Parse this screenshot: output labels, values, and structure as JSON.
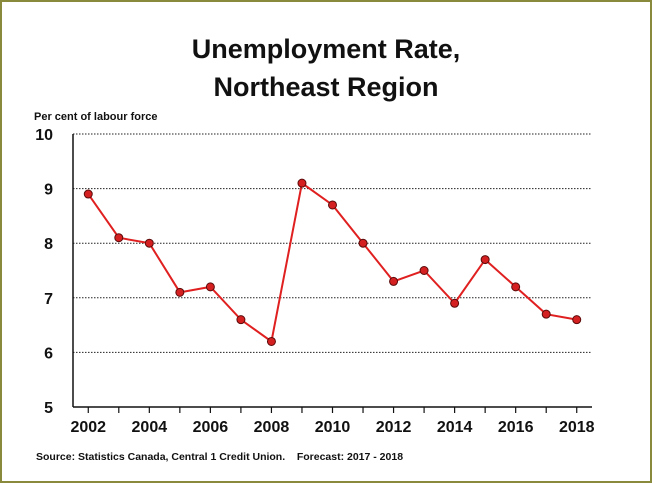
{
  "chart_data": {
    "type": "line",
    "title_lines": [
      "Unemployment Rate,",
      "Northeast Region"
    ],
    "ylabel": "Per cent of labour force",
    "source": "Source: Statistics Canada, Central 1 Credit Union.",
    "forecast_note": "Forecast: 2017 - 2018",
    "ylim": [
      5,
      10
    ],
    "yticks": [
      5,
      6,
      7,
      8,
      9,
      10
    ],
    "xlim": [
      2001.5,
      2018.5
    ],
    "xtick_labels": [
      "2002",
      "2004",
      "2006",
      "2008",
      "2010",
      "2012",
      "2014",
      "2016",
      "2018"
    ],
    "grid": "horizontal dotted",
    "colors": {
      "line": "#e02020",
      "marker": "#d42020",
      "frame": "#8a8a3c"
    },
    "series": [
      {
        "x": [
          2002,
          2003,
          2004,
          2005,
          2006,
          2007,
          2008,
          2009,
          2010,
          2011,
          2012,
          2013,
          2014,
          2015,
          2016,
          2017,
          2018
        ],
        "values": [
          8.9,
          8.1,
          8.0,
          7.1,
          7.2,
          6.6,
          6.2,
          9.1,
          8.7,
          8.0,
          7.3,
          7.5,
          6.9,
          7.7,
          7.2,
          6.7,
          6.6
        ]
      }
    ]
  }
}
